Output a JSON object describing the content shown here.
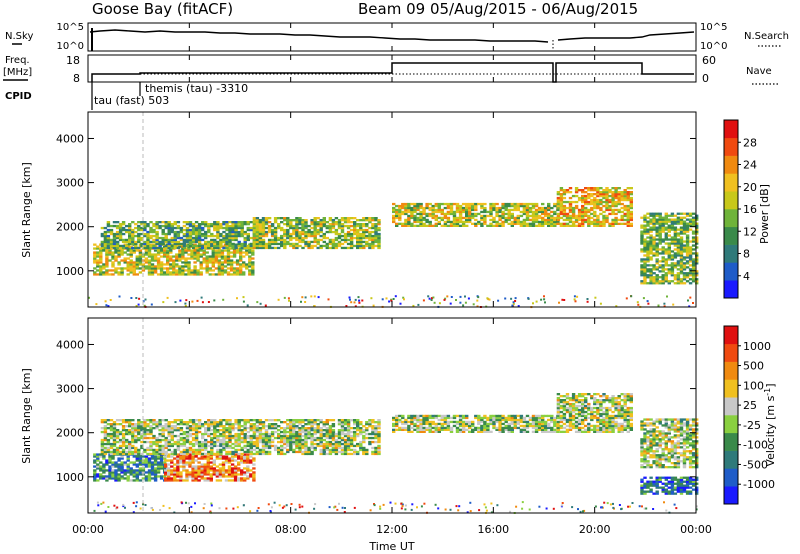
{
  "header": {
    "station": "Goose Bay (fitACF)",
    "beam_dates": "Beam 09 05/Aug/2015 - 06/Aug/2015"
  },
  "status_panels": {
    "nsky_label": "N.Sky",
    "nsearch_label": "N.Search",
    "noise_ticks": [
      "10^5",
      "10^0"
    ],
    "freq_label": "Freq.",
    "freq_unit": "[MHz]",
    "freq_ticks": [
      "18",
      "8"
    ],
    "nave_label": "Nave",
    "nave_ticks": [
      "60",
      "0"
    ],
    "cpid_label": "CPID",
    "cpid_entries": [
      {
        "text": "tau (fast) 503"
      },
      {
        "text": "themis (tau) -3310"
      }
    ]
  },
  "xaxis": {
    "label": "Time UT",
    "ticks": [
      "00:00",
      "04:00",
      "08:00",
      "12:00",
      "16:00",
      "20:00",
      "00:00"
    ]
  },
  "chart_data": [
    {
      "type": "heatmap",
      "name": "power",
      "ylabel": "Slant Range [km]",
      "yticks": [
        "1000",
        "2000",
        "3000",
        "4000"
      ],
      "ylim": [
        180,
        4600
      ],
      "xlim_hours": [
        0,
        24
      ],
      "colorbar": {
        "label": "Power [dB]",
        "ticks": [
          "4",
          "8",
          "12",
          "16",
          "20",
          "24",
          "28"
        ],
        "colors": [
          "#1a1aff",
          "#1f5cc8",
          "#2f7a7a",
          "#3a8a4a",
          "#6fb33a",
          "#c8c81a",
          "#f0c020",
          "#f08a10",
          "#f04a10",
          "#e01010"
        ]
      },
      "regions": [
        {
          "t0": 0.2,
          "t1": 6.5,
          "r0": 900,
          "r1": 1600,
          "level": 0.55
        },
        {
          "t0": 0.5,
          "t1": 6.8,
          "r0": 1500,
          "r1": 2100,
          "level": 0.4
        },
        {
          "t0": 6.5,
          "t1": 11.5,
          "r0": 1500,
          "r1": 2200,
          "level": 0.5
        },
        {
          "t0": 12.0,
          "t1": 18.5,
          "r0": 2000,
          "r1": 2500,
          "level": 0.55
        },
        {
          "t0": 18.5,
          "t1": 21.5,
          "r0": 2000,
          "r1": 2900,
          "level": 0.65
        },
        {
          "t0": 21.8,
          "t1": 24.0,
          "r0": 700,
          "r1": 2300,
          "level": 0.45
        }
      ]
    },
    {
      "type": "heatmap",
      "name": "velocity",
      "ylabel": "Slant Range [km]",
      "yticks": [
        "1000",
        "2000",
        "3000",
        "4000"
      ],
      "ylim": [
        180,
        4600
      ],
      "xlim_hours": [
        0,
        24
      ],
      "colorbar": {
        "label": "Velocity [m s",
        "label_sup": "-1",
        "label_end": "]",
        "ticks": [
          "1000",
          "500",
          "100",
          "25",
          "-25",
          "-100",
          "-500",
          "-1000"
        ],
        "colors": [
          "#1a1aff",
          "#1f5cc8",
          "#2f7a7a",
          "#3a8a4a",
          "#8ad040",
          "#c8c8c8",
          "#f0c020",
          "#f08a10",
          "#f04a10",
          "#e01010"
        ]
      },
      "regions": [
        {
          "t0": 0.2,
          "t1": 3.0,
          "r0": 900,
          "r1": 1500,
          "level": 0.3
        },
        {
          "t0": 3.0,
          "t1": 6.5,
          "r0": 900,
          "r1": 1500,
          "level": 0.75
        },
        {
          "t0": 0.5,
          "t1": 11.5,
          "r0": 1500,
          "r1": 2300,
          "level": 0.5
        },
        {
          "t0": 12.0,
          "t1": 18.5,
          "r0": 2000,
          "r1": 2400,
          "level": 0.5
        },
        {
          "t0": 18.5,
          "t1": 21.5,
          "r0": 2000,
          "r1": 2900,
          "level": 0.5
        },
        {
          "t0": 21.8,
          "t1": 24.0,
          "r0": 600,
          "r1": 1000,
          "level": 0.2
        },
        {
          "t0": 21.8,
          "t1": 24.0,
          "r0": 1200,
          "r1": 2300,
          "level": 0.5
        }
      ]
    }
  ]
}
